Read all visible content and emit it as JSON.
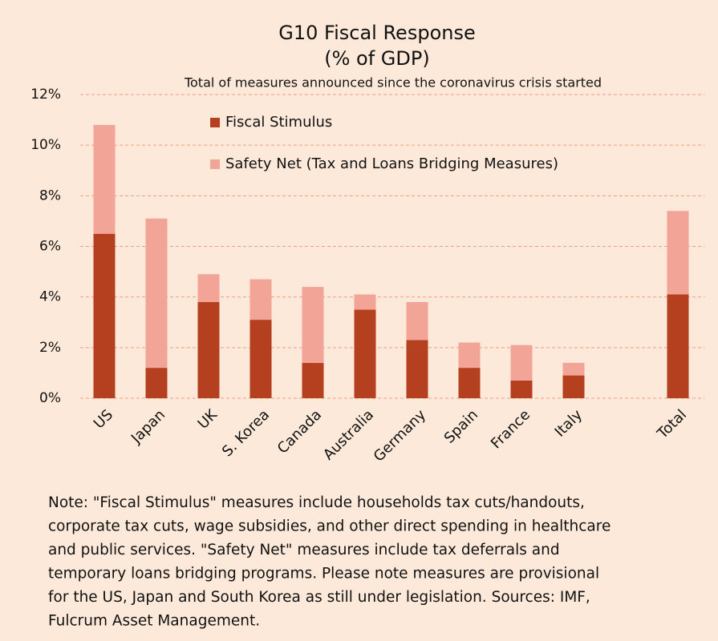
{
  "chart_data": {
    "type": "stacked_bar",
    "title": [
      "G10 Fiscal Response",
      "(% of GDP)"
    ],
    "subtitle": "Total of measures announced since the coronavirus crisis started",
    "categories": [
      "US",
      "Japan",
      "UK",
      "S. Korea",
      "Canada",
      "Australia",
      "Germany",
      "Spain",
      "France",
      "Italy",
      null,
      "Total"
    ],
    "series": [
      {
        "name": "Fiscal Stimulus",
        "color": "#b5401f",
        "values": [
          6.5,
          1.2,
          3.8,
          3.1,
          1.4,
          3.5,
          2.3,
          1.2,
          0.7,
          0.9,
          null,
          4.1
        ]
      },
      {
        "name": "Safety Net (Tax and Loans Bridging Measures)",
        "color": "#f2a597",
        "values": [
          4.3,
          5.9,
          1.1,
          1.6,
          3.0,
          0.6,
          1.5,
          1.0,
          1.4,
          0.5,
          null,
          3.3
        ]
      }
    ],
    "ylim": [
      0,
      12
    ],
    "yticks": [
      {
        "value": 0,
        "label": "0%"
      },
      {
        "value": 2,
        "label": "2%"
      },
      {
        "value": 4,
        "label": "4%"
      },
      {
        "value": 6,
        "label": "6%"
      },
      {
        "value": 8,
        "label": "8%"
      },
      {
        "value": 10,
        "label": "10%"
      },
      {
        "value": 12,
        "label": "12%"
      }
    ],
    "grid": true,
    "note": [
      "Note: \"Fiscal Stimulus\" measures include households tax cuts/handouts,",
      "corporate tax cuts, wage subsidies, and other direct spending in healthcare",
      "and public services. \"Safety Net\" measures include tax deferrals and",
      "temporary loans bridging programs. Please note measures are provisional",
      "for the US, Japan and South Korea as still under legislation. Sources: IMF,",
      "Fulcrum Asset Management."
    ]
  }
}
